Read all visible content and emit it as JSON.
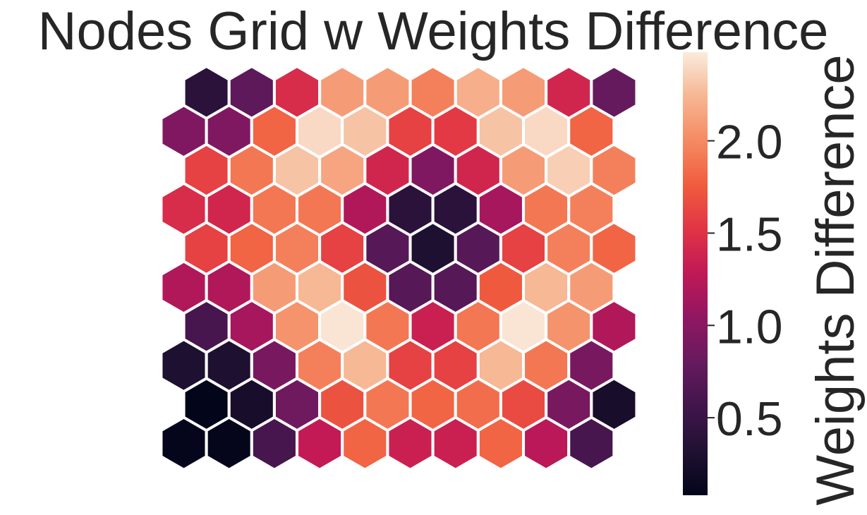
{
  "chart_data": {
    "type": "heatmap",
    "title": "Nodes Grid w Weights Difference",
    "grid_shape": "hexagonal",
    "rows": 10,
    "cols": 10,
    "row_order": "top-to-bottom",
    "values": [
      [
        0.4,
        0.75,
        1.45,
        2.1,
        2.1,
        1.95,
        2.2,
        2.1,
        1.4,
        0.8
      ],
      [
        0.95,
        0.95,
        1.8,
        2.4,
        2.3,
        1.6,
        1.55,
        2.3,
        2.4,
        1.8
      ],
      [
        1.6,
        1.9,
        2.3,
        2.15,
        1.4,
        0.95,
        1.4,
        2.1,
        2.35,
        1.95
      ],
      [
        1.45,
        1.4,
        1.9,
        1.9,
        1.2,
        0.4,
        0.4,
        1.15,
        1.9,
        1.95
      ],
      [
        1.6,
        1.8,
        1.95,
        1.6,
        0.7,
        0.3,
        0.7,
        1.6,
        1.95,
        1.8
      ],
      [
        1.2,
        1.2,
        2.1,
        2.25,
        1.7,
        0.7,
        0.7,
        1.75,
        2.25,
        2.1
      ],
      [
        0.6,
        1.15,
        2.05,
        2.45,
        1.9,
        1.35,
        1.9,
        2.45,
        2.05,
        1.2
      ],
      [
        0.3,
        0.3,
        0.9,
        1.95,
        2.25,
        1.6,
        1.6,
        2.25,
        1.9,
        0.9
      ],
      [
        0.08,
        0.25,
        0.85,
        1.7,
        1.9,
        1.8,
        1.85,
        1.65,
        0.9,
        0.25
      ],
      [
        0.1,
        0.1,
        0.6,
        1.3,
        1.8,
        1.35,
        1.35,
        1.8,
        1.25,
        0.6
      ]
    ],
    "colormap": "rocket",
    "colorbar": {
      "label": "Weights Difference",
      "vmin": 0.08,
      "vmax": 2.48,
      "ticks": [
        0.5,
        1.0,
        1.5,
        2.0
      ],
      "tick_labels": [
        "0.5",
        "1.0",
        "1.5",
        "2.0"
      ]
    },
    "grid": false
  }
}
